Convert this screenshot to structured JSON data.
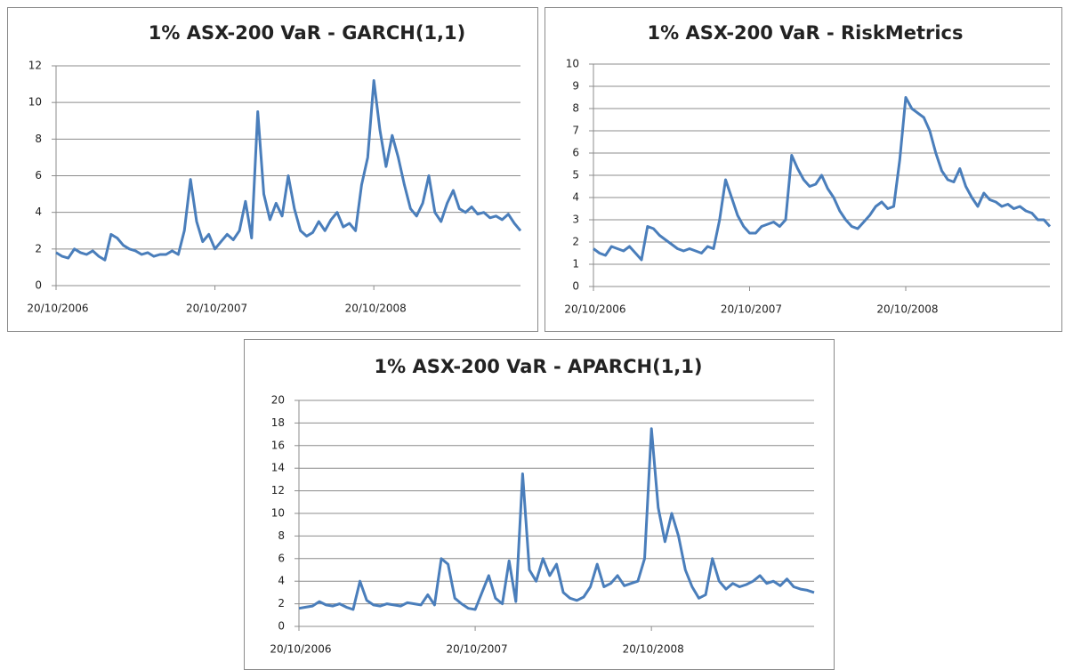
{
  "chart_data": [
    {
      "type": "line",
      "title": "1% ASX-200 VaR - GARCH(1,1)",
      "color": "#4a7ebb",
      "grid": true,
      "ylim": [
        0,
        12
      ],
      "yticks": [
        0,
        2,
        4,
        6,
        8,
        10,
        12
      ],
      "categories": [
        "20/10/2006",
        null,
        null,
        null,
        null,
        null,
        null,
        null,
        null,
        null,
        null,
        null,
        null,
        null,
        null,
        null,
        null,
        null,
        null,
        null,
        null,
        null,
        null,
        null,
        null,
        null,
        "20/10/2007",
        null,
        null,
        null,
        null,
        null,
        null,
        null,
        null,
        null,
        null,
        null,
        null,
        null,
        null,
        null,
        null,
        null,
        null,
        null,
        null,
        null,
        null,
        null,
        null,
        null,
        "20/10/2008",
        null,
        null,
        null,
        null,
        null,
        null,
        null,
        null,
        null,
        null,
        null,
        null,
        null,
        null,
        null,
        null,
        null,
        null,
        null,
        null,
        null,
        null,
        null,
        null
      ],
      "values": [
        1.8,
        1.6,
        1.5,
        2.0,
        1.8,
        1.7,
        1.9,
        1.6,
        1.4,
        2.8,
        2.6,
        2.2,
        2.0,
        1.9,
        1.7,
        1.8,
        1.6,
        1.7,
        1.7,
        1.9,
        1.7,
        3.0,
        5.8,
        3.5,
        2.4,
        2.8,
        2.0,
        2.4,
        2.8,
        2.5,
        3.0,
        4.6,
        2.6,
        9.5,
        5.0,
        3.6,
        4.5,
        3.8,
        6.0,
        4.2,
        3.0,
        2.7,
        2.9,
        3.5,
        3.0,
        3.6,
        4.0,
        3.2,
        3.4,
        3.0,
        5.5,
        7.0,
        11.2,
        8.5,
        6.5,
        8.2,
        7.0,
        5.5,
        4.2,
        3.8,
        4.5,
        6.0,
        4.0,
        3.5,
        4.5,
        5.2,
        4.2,
        4.0,
        4.3,
        3.9,
        4.0,
        3.7,
        3.8,
        3.6,
        3.9,
        3.4,
        3.0
      ]
    },
    {
      "type": "line",
      "title": "1% ASX-200 VaR - RiskMetrics",
      "color": "#4a7ebb",
      "grid": true,
      "ylim": [
        0,
        10
      ],
      "yticks": [
        0,
        1,
        2,
        3,
        4,
        5,
        6,
        7,
        8,
        9,
        10
      ],
      "categories": [
        "20/10/2006",
        null,
        null,
        null,
        null,
        null,
        null,
        null,
        null,
        null,
        null,
        null,
        null,
        null,
        null,
        null,
        null,
        null,
        null,
        null,
        null,
        null,
        null,
        null,
        null,
        null,
        "20/10/2007",
        null,
        null,
        null,
        null,
        null,
        null,
        null,
        null,
        null,
        null,
        null,
        null,
        null,
        null,
        null,
        null,
        null,
        null,
        null,
        null,
        null,
        null,
        null,
        null,
        null,
        "20/10/2008",
        null,
        null,
        null,
        null,
        null,
        null,
        null,
        null,
        null,
        null,
        null,
        null,
        null,
        null,
        null,
        null,
        null,
        null,
        null,
        null,
        null,
        null,
        null,
        null
      ],
      "values": [
        1.7,
        1.5,
        1.4,
        1.8,
        1.7,
        1.6,
        1.8,
        1.5,
        1.2,
        2.7,
        2.6,
        2.3,
        2.1,
        1.9,
        1.7,
        1.6,
        1.7,
        1.6,
        1.5,
        1.8,
        1.7,
        3.0,
        4.8,
        4.0,
        3.2,
        2.7,
        2.4,
        2.4,
        2.7,
        2.8,
        2.9,
        2.7,
        3.0,
        5.9,
        5.3,
        4.8,
        4.5,
        4.6,
        5.0,
        4.4,
        4.0,
        3.4,
        3.0,
        2.7,
        2.6,
        2.9,
        3.2,
        3.6,
        3.8,
        3.5,
        3.6,
        5.7,
        8.5,
        8.0,
        7.8,
        7.6,
        7.0,
        6.0,
        5.2,
        4.8,
        4.7,
        5.3,
        4.5,
        4.0,
        3.6,
        4.2,
        3.9,
        3.8,
        3.6,
        3.7,
        3.5,
        3.6,
        3.4,
        3.3,
        3.0,
        3.0,
        2.7
      ]
    },
    {
      "type": "line",
      "title": "1% ASX-200 VaR - APARCH(1,1)",
      "color": "#4a7ebb",
      "grid": true,
      "ylim": [
        0,
        20
      ],
      "yticks": [
        0,
        2,
        4,
        6,
        8,
        10,
        12,
        14,
        16,
        18,
        20
      ],
      "categories": [
        "20/10/2006",
        null,
        null,
        null,
        null,
        null,
        null,
        null,
        null,
        null,
        null,
        null,
        null,
        null,
        null,
        null,
        null,
        null,
        null,
        null,
        null,
        null,
        null,
        null,
        null,
        null,
        "20/10/2007",
        null,
        null,
        null,
        null,
        null,
        null,
        null,
        null,
        null,
        null,
        null,
        null,
        null,
        null,
        null,
        null,
        null,
        null,
        null,
        null,
        null,
        null,
        null,
        null,
        null,
        "20/10/2008",
        null,
        null,
        null,
        null,
        null,
        null,
        null,
        null,
        null,
        null,
        null,
        null,
        null,
        null,
        null,
        null,
        null,
        null,
        null,
        null,
        null,
        null,
        null,
        null
      ],
      "values": [
        1.6,
        1.7,
        1.8,
        2.2,
        1.9,
        1.8,
        2.0,
        1.7,
        1.5,
        4.0,
        2.3,
        1.9,
        1.8,
        2.0,
        1.9,
        1.8,
        2.1,
        2.0,
        1.9,
        2.8,
        1.9,
        6.0,
        5.5,
        2.5,
        2.0,
        1.6,
        1.5,
        3.0,
        4.5,
        2.5,
        2.0,
        5.8,
        2.2,
        13.5,
        5.0,
        4.0,
        6.0,
        4.5,
        5.5,
        3.0,
        2.5,
        2.3,
        2.6,
        3.5,
        5.5,
        3.5,
        3.8,
        4.5,
        3.6,
        3.8,
        4.0,
        6.0,
        17.5,
        10.5,
        7.5,
        10.0,
        8.0,
        5.0,
        3.5,
        2.5,
        2.8,
        6.0,
        4.0,
        3.3,
        3.8,
        3.5,
        3.7,
        4.0,
        4.5,
        3.8,
        4.0,
        3.6,
        4.2,
        3.5,
        3.3,
        3.2,
        3.0
      ]
    }
  ]
}
